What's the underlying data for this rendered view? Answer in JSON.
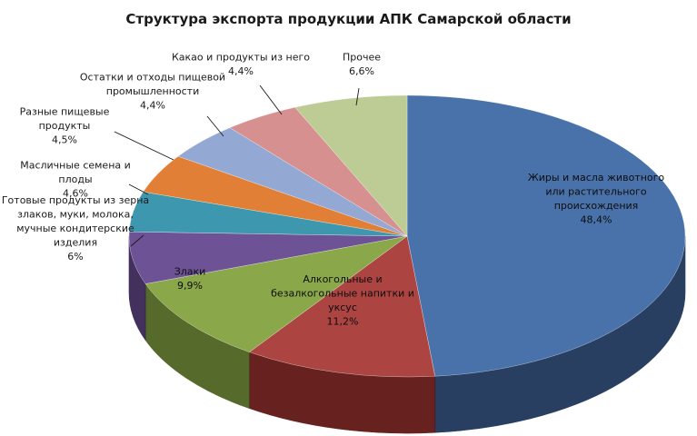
{
  "chart_data": {
    "type": "pie",
    "title": "Структура экспорта продукции АПК Самарской области",
    "slices": [
      {
        "lines": [
          "Жиры и масла животного",
          "или растительного",
          "происхождения",
          "48,4%"
        ],
        "value": 48.4,
        "color": "#4a72aa",
        "side": "#283f62"
      },
      {
        "lines": [
          "Алкогольные и",
          "безалкогольные напитки и",
          "уксус",
          "11,2%"
        ],
        "value": 11.2,
        "color": "#ac4442",
        "side": "#672220"
      },
      {
        "lines": [
          "Злаки",
          "9,9%"
        ],
        "value": 9.9,
        "color": "#8aa74a",
        "side": "#566a2c"
      },
      {
        "lines": [
          "Готовые продукты из зерна",
          "злаков, муки, молока,",
          "мучные кондитерские",
          "изделия",
          "6%"
        ],
        "value": 6.0,
        "color": "#6e5296",
        "side": "#43305c"
      },
      {
        "lines": [
          "Масличные семена и",
          "плоды",
          "4,6%"
        ],
        "value": 4.6,
        "color": "#3d97ae",
        "side": "#215f6e"
      },
      {
        "lines": [
          "Разные пищевые",
          "продукты",
          "4,5%"
        ],
        "value": 4.5,
        "color": "#e07f35",
        "side": "#8f4e1c"
      },
      {
        "lines": [
          "Остатки и отходы пищевой",
          "промышленности",
          "4,4%"
        ],
        "value": 4.4,
        "color": "#93a9d4",
        "side": "#5c6e92"
      },
      {
        "lines": [
          "Какао и продукты из него",
          "4,4%"
        ],
        "value": 4.4,
        "color": "#d69090",
        "side": "#955858"
      },
      {
        "lines": [
          "Прочее",
          "6,6%"
        ],
        "value": 6.6,
        "color": "#bccc94",
        "side": "#7f8c5e"
      }
    ]
  }
}
